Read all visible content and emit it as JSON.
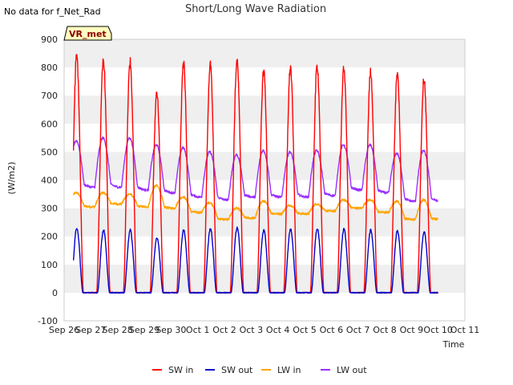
{
  "chart_data": {
    "type": "line",
    "title": "Short/Long Wave Radiation",
    "note": "No data for f_Net_Rad",
    "badge": "VR_met",
    "xlabel": "Time",
    "ylabel": "(W/m2)",
    "ylim": [
      -100,
      900
    ],
    "yticks": [
      -100,
      0,
      100,
      200,
      300,
      400,
      500,
      600,
      700,
      800,
      900
    ],
    "xlim": [
      0,
      15
    ],
    "xtick_labels": [
      "Sep 26",
      "Sep 27",
      "Sep 28",
      "Sep 29",
      "Sep 30",
      "Oct 1",
      "Oct 2",
      "Oct 3",
      "Oct 4",
      "Oct 5",
      "Oct 6",
      "Oct 7",
      "Oct 8",
      "Oct 9",
      "Oct 10",
      "Oct 11"
    ],
    "grid": "horizontal bands",
    "legend_position": "bottom",
    "series": [
      {
        "name": "SW in",
        "color": "#ff0000",
        "kind": "daily_peak",
        "x_start": 0.35,
        "x_end": 14.0,
        "sunrise": 0.22,
        "sunset": 0.72,
        "night": 0,
        "peaks": [
          840,
          825,
          820,
          710,
          815,
          810,
          820,
          790,
          800,
          805,
          795,
          785,
          775,
          760
        ]
      },
      {
        "name": "SW out",
        "color": "#0000cc",
        "kind": "daily_peak",
        "x_start": 0.35,
        "x_end": 14.0,
        "sunrise": 0.25,
        "sunset": 0.7,
        "night": 0,
        "peaks": [
          230,
          222,
          222,
          195,
          222,
          228,
          232,
          222,
          225,
          228,
          225,
          222,
          220,
          215
        ]
      },
      {
        "name": "LW in",
        "color": "#ffa500",
        "kind": "daily_wave",
        "x_start": 0.35,
        "x_end": 14.0,
        "day_values": [
          355,
          355,
          350,
          380,
          340,
          320,
          300,
          325,
          310,
          315,
          330,
          330,
          325,
          330
        ],
        "night_values": [
          300,
          305,
          315,
          305,
          300,
          285,
          260,
          265,
          280,
          280,
          290,
          300,
          285,
          260
        ]
      },
      {
        "name": "LW out",
        "color": "#9b30ff",
        "kind": "daily_wave",
        "x_start": 0.35,
        "x_end": 14.0,
        "day_values": [
          540,
          550,
          550,
          525,
          515,
          500,
          490,
          505,
          500,
          505,
          525,
          525,
          495,
          505
        ],
        "night_values": [
          365,
          375,
          375,
          365,
          355,
          340,
          330,
          340,
          340,
          340,
          345,
          365,
          355,
          325
        ]
      }
    ]
  }
}
